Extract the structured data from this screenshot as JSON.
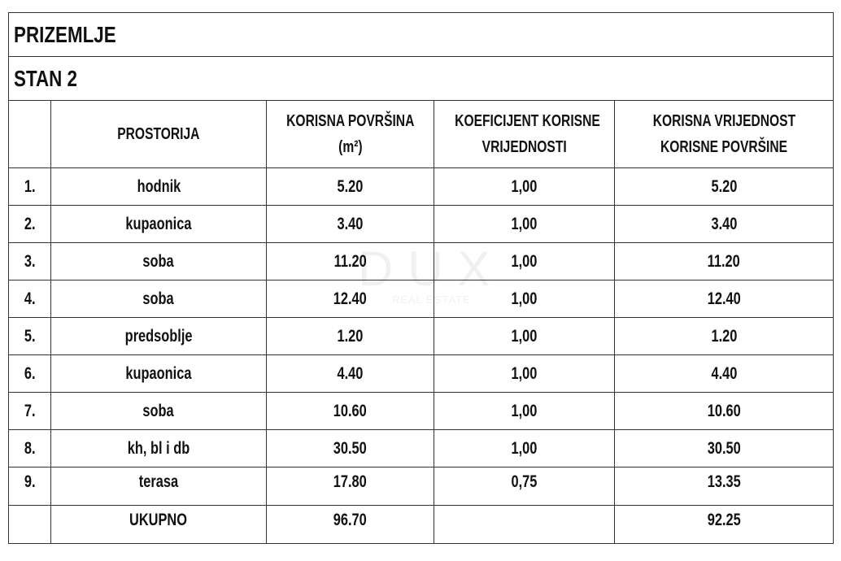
{
  "floor_title": "PRIZEMLJE",
  "unit_title": "STAN 2",
  "headers": {
    "room": "PROSTORIJA",
    "area_line1": "KORISNA POVRŠINA",
    "area_line2": "(m²)",
    "coef_line1": "KOEFICIJENT KORISNE",
    "coef_line2": "VRIJEDNOSTI",
    "value_line1": "KORISNA VRIJEDNOST",
    "value_line2": "KORISNE POVRŠINE"
  },
  "rows": [
    {
      "no": "1.",
      "room": "hodnik",
      "area": "5.20",
      "coef": "1,00",
      "value": "5.20"
    },
    {
      "no": "2.",
      "room": "kupaonica",
      "area": "3.40",
      "coef": "1,00",
      "value": "3.40"
    },
    {
      "no": "3.",
      "room": "soba",
      "area": "11.20",
      "coef": "1,00",
      "value": "11.20"
    },
    {
      "no": "4.",
      "room": "soba",
      "area": "12.40",
      "coef": "1,00",
      "value": "12.40"
    },
    {
      "no": "5.",
      "room": "predsoblje",
      "area": "1.20",
      "coef": "1,00",
      "value": "1.20"
    },
    {
      "no": "6.",
      "room": "kupaonica",
      "area": "4.40",
      "coef": "1,00",
      "value": "4.40"
    },
    {
      "no": "7.",
      "room": "soba",
      "area": "10.60",
      "coef": "1,00",
      "value": "10.60"
    },
    {
      "no": "8.",
      "room": "kh, bl i db",
      "area": "30.50",
      "coef": "1,00",
      "value": "30.50"
    },
    {
      "no": "9.",
      "room": "terasa",
      "area": "17.80",
      "coef": "0,75",
      "value": "13.35"
    }
  ],
  "total": {
    "label": "UKUPNO",
    "area": "96.70",
    "value": "92.25"
  },
  "watermark": {
    "brand": "DUX",
    "tagline": "REAL ESTATE"
  }
}
